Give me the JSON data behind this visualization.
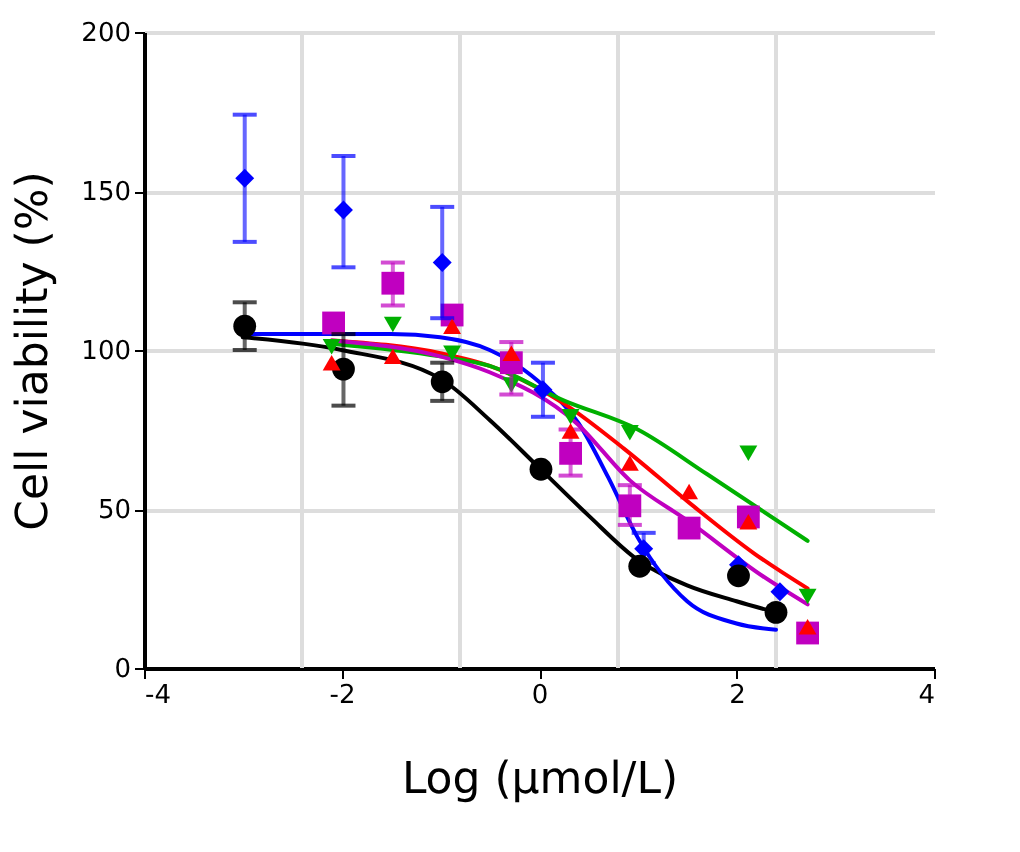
{
  "chart_data": {
    "type": "scatter",
    "xlabel": "Log (µmol/L)",
    "ylabel": "Cell viability (%)",
    "xlim": [
      -4,
      4
    ],
    "ylim": [
      0,
      200
    ],
    "xticks": [
      -4,
      {
        "value": -2.4,
        "label": null
      },
      -2,
      {
        "value": -0.8,
        "label": null
      },
      0,
      {
        "value": 0.8,
        "label": null
      },
      2,
      {
        "value": 2.4,
        "label": null
      },
      4
    ],
    "yticks": [
      0,
      50,
      100,
      150,
      200
    ],
    "grid": true,
    "series": [
      {
        "type": "line",
        "color": "#000000",
        "x": [
          -3,
          -2,
          -1,
          -0.5,
          0,
          0.5,
          1,
          1.5,
          2,
          2.4
        ],
        "values": [
          104,
          100,
          91,
          78,
          63,
          48,
          34,
          26,
          21,
          17.5
        ]
      },
      {
        "type": "line",
        "color": "#0000ff",
        "x": [
          -3,
          -1.5,
          -1,
          -0.5,
          0,
          0.4,
          0.7,
          1,
          1.5,
          2,
          2.4
        ],
        "values": [
          105,
          105,
          104,
          100,
          90,
          77,
          60,
          41,
          21,
          14,
          12
        ]
      },
      {
        "type": "line",
        "color": "#ff0000",
        "x": [
          -2.1,
          -1,
          -0.5,
          0.26,
          0.86,
          1.52,
          2.18,
          2.72
        ],
        "values": [
          103,
          99,
          95,
          83,
          69,
          52,
          36,
          25
        ]
      },
      {
        "type": "line",
        "color": "#00b000",
        "x": [
          -2.1,
          -1,
          -0.5,
          0.26,
          1,
          1.7,
          2.72
        ],
        "values": [
          102,
          98,
          95,
          84,
          75,
          61,
          40
        ]
      },
      {
        "type": "line",
        "color": "#c000c0",
        "x": [
          -2.1,
          -1,
          -0.5,
          0.38,
          0.92,
          1.52,
          2.26,
          2.72
        ],
        "values": [
          103,
          98,
          93,
          77,
          59,
          46,
          29,
          20
        ]
      },
      {
        "marker": "triangle-down",
        "color": "#00b000",
        "x": [
          -2.1,
          -1.48,
          -0.88,
          -0.28,
          0.32,
          0.92,
          2.12,
          2.72
        ],
        "values": [
          101,
          108,
          99,
          89,
          79,
          74,
          67.5,
          22.5
        ]
      },
      {
        "marker": "square",
        "color": "#c000c0",
        "x": [
          -2.08,
          -1.48,
          -0.88,
          -0.28,
          0.32,
          0.92,
          1.52,
          2.12,
          2.72
        ],
        "values": [
          108.5,
          121,
          111,
          96,
          67.5,
          51,
          44,
          47.5,
          11
        ],
        "errors": [
          null,
          [
            114,
            127.5
          ],
          null,
          [
            86,
            102.5
          ],
          [
            60.5,
            75
          ],
          [
            45,
            57.5
          ],
          null,
          null,
          null
        ]
      },
      {
        "marker": "diamond",
        "color": "#0000ff",
        "x": [
          -2.98,
          -1.98,
          -0.98,
          0.04,
          1.06,
          2.02,
          2.44
        ],
        "values": [
          154,
          144,
          127.5,
          87.5,
          37.5,
          32.5,
          24
        ],
        "errors": [
          [
            134,
            174
          ],
          [
            126,
            161
          ],
          [
            110,
            145
          ],
          [
            79,
            96
          ],
          [
            33,
            42.5
          ],
          null,
          null
        ]
      },
      {
        "marker": "circle",
        "color": "#000000",
        "x": [
          -2.98,
          -1.98,
          -0.98,
          0.02,
          1.02,
          2.02,
          2.4
        ],
        "values": [
          107.5,
          94,
          90,
          62.5,
          32,
          29,
          17.5
        ],
        "errors": [
          [
            100,
            115
          ],
          [
            82.5,
            105
          ],
          [
            84,
            96
          ],
          null,
          null,
          null,
          null
        ]
      },
      {
        "marker": "triangle",
        "color": "#ff0000",
        "x": [
          -2.1,
          -1.48,
          -0.88,
          -0.28,
          0.32,
          0.92,
          1.52,
          2.12,
          2.72
        ],
        "values": [
          96,
          98,
          107.5,
          99,
          74.5,
          64.5,
          55.5,
          46,
          13
        ]
      }
    ]
  }
}
